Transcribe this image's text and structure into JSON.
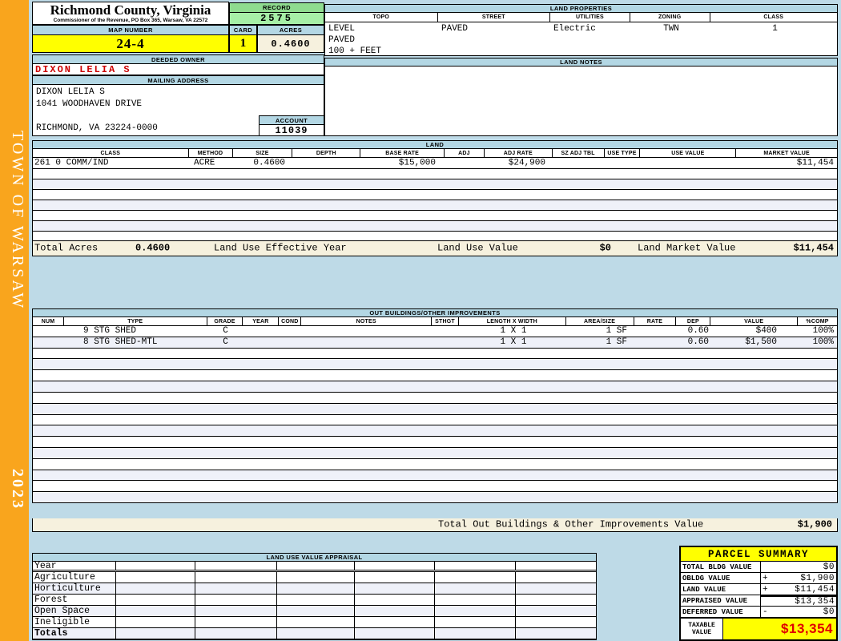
{
  "sidebar": {
    "town_name": "TOWN OF WARSAW",
    "year": "2023"
  },
  "header": {
    "county_title": "Richmond County, Virginia",
    "commissioner_line": "Commissioner of the Revenue, PO Box 365, Warsaw, VA 22572",
    "record_label": "RECORD",
    "record_number": "2575",
    "map_number_label": "MAP NUMBER",
    "map_number": "24-4",
    "card_label": "CARD",
    "card_number": "1",
    "acres_label": "ACRES",
    "acres": "0.4600",
    "deeded_owner_label": "DEEDED OWNER",
    "deeded_owner": "DIXON LELIA S",
    "mailing_address_label": "MAILING ADDRESS",
    "mailing_address_lines": [
      "DIXON LELIA S",
      "1041 WOODHAVEN DRIVE",
      "",
      "RICHMOND, VA 23224-0000"
    ],
    "account_label": "ACCOUNT",
    "account_number": "11039"
  },
  "land_properties": {
    "title": "LAND PROPERTIES",
    "headers": [
      "TOPO",
      "STREET",
      "UTILITIES",
      "ZONING",
      "CLASS"
    ],
    "topo_lines": [
      "LEVEL",
      "PAVED",
      "100 + FEET"
    ],
    "street": "PAVED",
    "utilities": "Electric",
    "zoning": "TWN",
    "class_value": "1"
  },
  "land_notes": {
    "title": "LAND NOTES"
  },
  "land": {
    "title": "LAND",
    "headers": [
      "CLASS",
      "METHOD",
      "SIZE",
      "DEPTH",
      "BASE RATE",
      "ADJ",
      "ADJ RATE",
      "SZ ADJ TBL",
      "USE TYPE",
      "USE VALUE",
      "MARKET VALUE"
    ],
    "rows": [
      {
        "class": "261 0 COMM/IND",
        "method": "ACRE",
        "size": "0.4600",
        "depth": "",
        "base_rate": "$15,000",
        "adj": "",
        "adj_rate": "$24,900",
        "sz_adj_tbl": "",
        "use_type": "",
        "use_value": "",
        "market_value": "$11,454"
      }
    ],
    "totals": {
      "total_acres_label": "Total Acres",
      "total_acres": "0.4600",
      "effective_year_label": "Land Use Effective Year",
      "land_use_value_label": "Land Use Value",
      "land_use_value": "$0",
      "land_market_value_label": "Land Market Value",
      "land_market_value": "$11,454"
    }
  },
  "out_buildings": {
    "title": "OUT BUILDINGS/OTHER IMPROVEMENTS",
    "headers": [
      "NUM",
      "TYPE",
      "GRADE",
      "YEAR",
      "COND",
      "NOTES",
      "STHGT",
      "LENGTH X WIDTH",
      "AREA/SIZE",
      "RATE",
      "DEP",
      "VALUE",
      "%COMP"
    ],
    "rows": [
      {
        "num": "",
        "type": "9 STG SHED",
        "grade": "C",
        "year": "",
        "cond": "",
        "notes": "",
        "sthgt": "",
        "length_width": "1 X 1",
        "area_size": "1 SF",
        "rate": "",
        "dep": "0.60",
        "value": "$400",
        "pct_comp": "100%"
      },
      {
        "num": "",
        "type": "8 STG SHED-MTL",
        "grade": "C",
        "year": "",
        "cond": "",
        "notes": "",
        "sthgt": "",
        "length_width": "1 X 1",
        "area_size": "1 SF",
        "rate": "",
        "dep": "0.60",
        "value": "$1,500",
        "pct_comp": "100%"
      }
    ],
    "total_label": "Total Out Buildings & Other Improvements Value",
    "total_value": "$1,900"
  },
  "land_use_appraisal": {
    "title": "LAND USE VALUE APPRAISAL",
    "row_labels": [
      "Year",
      "Agriculture",
      "Horticulture",
      "Forest",
      "Open Space",
      "Ineligible",
      "Totals"
    ]
  },
  "parcel_summary": {
    "title": "PARCEL SUMMARY",
    "rows": [
      {
        "label": "TOTAL BLDG VALUE",
        "op": "",
        "value": "$0"
      },
      {
        "label": "OBLDG VALUE",
        "op": "+",
        "value": "$1,900"
      },
      {
        "label": "LAND VALUE",
        "op": "+",
        "value": "$11,454"
      },
      {
        "label": "APPRAISED VALUE",
        "op": "",
        "value": "$13,354"
      },
      {
        "label": "DEFERRED VALUE",
        "op": "-",
        "value": "$0"
      }
    ],
    "taxable_label": "TAXABLE VALUE",
    "taxable_value": "$13,354"
  },
  "colors": {
    "sidebar_orange": "#F9A51D",
    "header_blue": "#B3D7E4",
    "record_green": "#8FDC8F",
    "record_green_light": "#A6EFA6",
    "highlight_yellow": "#FFFF00",
    "cream": "#F6F1DE",
    "owner_red": "#CC0000",
    "taxable_red": "#E00000"
  }
}
